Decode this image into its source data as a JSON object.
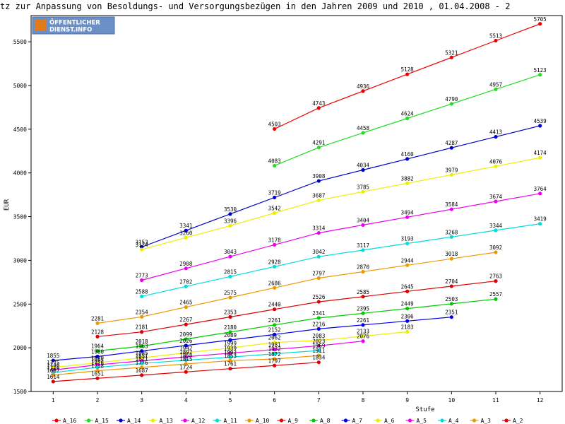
{
  "page": {
    "title": "tz zur Anpassung von Besoldungs- und Versorgungsbezügen in den Jahren 2009 und 2010 , 01.04.2008 - 2",
    "logo": {
      "line1": "ÖFFENTLICHER",
      "line2": "DIENST.INFO",
      "colors": [
        "#6b8fc7",
        "#e07b1a"
      ]
    }
  },
  "chart_data": {
    "type": "line",
    "title": "tz zur Anpassung von Besoldungs- und Versorgungsbezügen in den Jahren 2009 und 2010 , 01.04.2008 - 2",
    "xlabel": "Stufe",
    "ylabel": "EUR",
    "xlim": [
      0.5,
      12.5
    ],
    "ylim": [
      1500,
      5800
    ],
    "x_ticks": [
      "1",
      "2",
      "3",
      "4",
      "5",
      "6",
      "7",
      "8",
      "9",
      "10",
      "11",
      "12"
    ],
    "y_ticks": [
      "1500",
      "2000",
      "2500",
      "3000",
      "3500",
      "4000",
      "4500",
      "5000",
      "5500"
    ],
    "grid": false,
    "legend_position": "bottom",
    "series": [
      {
        "name": "A_16",
        "color": "#ee0000",
        "x": [
          6,
          7,
          8,
          9,
          10,
          11,
          12
        ],
        "values": [
          4503,
          4743,
          4936,
          5128,
          5321,
          5513,
          5705
        ]
      },
      {
        "name": "A_15",
        "color": "#22dd22",
        "x": [
          6,
          7,
          8,
          9,
          10,
          11,
          12
        ],
        "values": [
          4083,
          4291,
          4458,
          4624,
          4790,
          4957,
          5123
        ]
      },
      {
        "name": "A_14",
        "color": "#0000cc",
        "x": [
          3,
          4,
          5,
          6,
          7,
          8,
          9,
          10,
          11,
          12
        ],
        "values": [
          3153,
          3341,
          3530,
          3719,
          3908,
          4034,
          4160,
          4287,
          4413,
          4539
        ]
      },
      {
        "name": "A_13",
        "color": "#eeee00",
        "x": [
          3,
          4,
          5,
          6,
          7,
          8,
          9,
          10,
          11,
          12
        ],
        "values": [
          3124,
          3260,
          3396,
          3542,
          3687,
          3785,
          3882,
          3979,
          4076,
          4174
        ]
      },
      {
        "name": "A_12",
        "color": "#ee00ee",
        "x": [
          3,
          4,
          5,
          6,
          7,
          8,
          9,
          10,
          11,
          12
        ],
        "values": [
          2773,
          2908,
          3043,
          3178,
          3314,
          3404,
          3494,
          3584,
          3674,
          3764
        ]
      },
      {
        "name": "A_11",
        "color": "#00dddd",
        "x": [
          3,
          4,
          5,
          6,
          7,
          8,
          9,
          10,
          11,
          12
        ],
        "values": [
          2588,
          2702,
          2815,
          2928,
          3042,
          3117,
          3193,
          3268,
          3344,
          3419
        ]
      },
      {
        "name": "A_10",
        "color": "#ee9900",
        "x": [
          2,
          3,
          4,
          5,
          6,
          7,
          8,
          9,
          10,
          11
        ],
        "values": [
          2281,
          2354,
          2465,
          2575,
          2686,
          2797,
          2870,
          2944,
          3018,
          3092
        ]
      },
      {
        "name": "A_9",
        "color": "#dd0000",
        "x": [
          2,
          3,
          4,
          5,
          6,
          7,
          8,
          9,
          10,
          11
        ],
        "values": [
          2128,
          2181,
          2267,
          2353,
          2440,
          2526,
          2585,
          2645,
          2704,
          2763
        ]
      },
      {
        "name": "A_8",
        "color": "#00cc00",
        "x": [
          2,
          3,
          4,
          5,
          6,
          7,
          8,
          9,
          10,
          11
        ],
        "values": [
          1964,
          2018,
          2099,
          2180,
          2261,
          2341,
          2395,
          2449,
          2503,
          2557
        ]
      },
      {
        "name": "A_7",
        "color": "#0000ee",
        "x": [
          1,
          2,
          3,
          4,
          5,
          6,
          7,
          8,
          9,
          10
        ],
        "values": [
          1855,
          1900,
          1963,
          2026,
          2089,
          2152,
          2216,
          2261,
          2306,
          2351
        ]
      },
      {
        "name": "A_6",
        "color": "#eeee00",
        "x": [
          1,
          2,
          3,
          4,
          5,
          6,
          7,
          8,
          9
        ],
        "values": [
          1775,
          1829,
          1885,
          1942,
          1999,
          2062,
          2083,
          2133,
          2183
        ]
      },
      {
        "name": "A_5",
        "color": "#ee00ee",
        "x": [
          1,
          2,
          3,
          4,
          5,
          6,
          7,
          8
        ],
        "values": [
          1746,
          1805,
          1851,
          1897,
          1939,
          1981,
          2023,
          2076
        ]
      },
      {
        "name": "A_4",
        "color": "#00dddd",
        "x": [
          1,
          2,
          3,
          4,
          5,
          6,
          7
        ],
        "values": [
          1716,
          1776,
          1821,
          1858,
          1893,
          1932,
          1969
        ]
      },
      {
        "name": "A_3",
        "color": "#ee9900",
        "x": [
          1,
          2,
          3,
          4,
          5,
          6,
          7
        ],
        "values": [
          1687,
          1738,
          1776,
          1815,
          1853,
          1872,
          1911
        ]
      },
      {
        "name": "A_2",
        "color": "#dd0000",
        "x": [
          1,
          2,
          3,
          4,
          5,
          6,
          7
        ],
        "values": [
          1614,
          1651,
          1687,
          1724,
          1761,
          1797,
          1834
        ]
      }
    ]
  }
}
